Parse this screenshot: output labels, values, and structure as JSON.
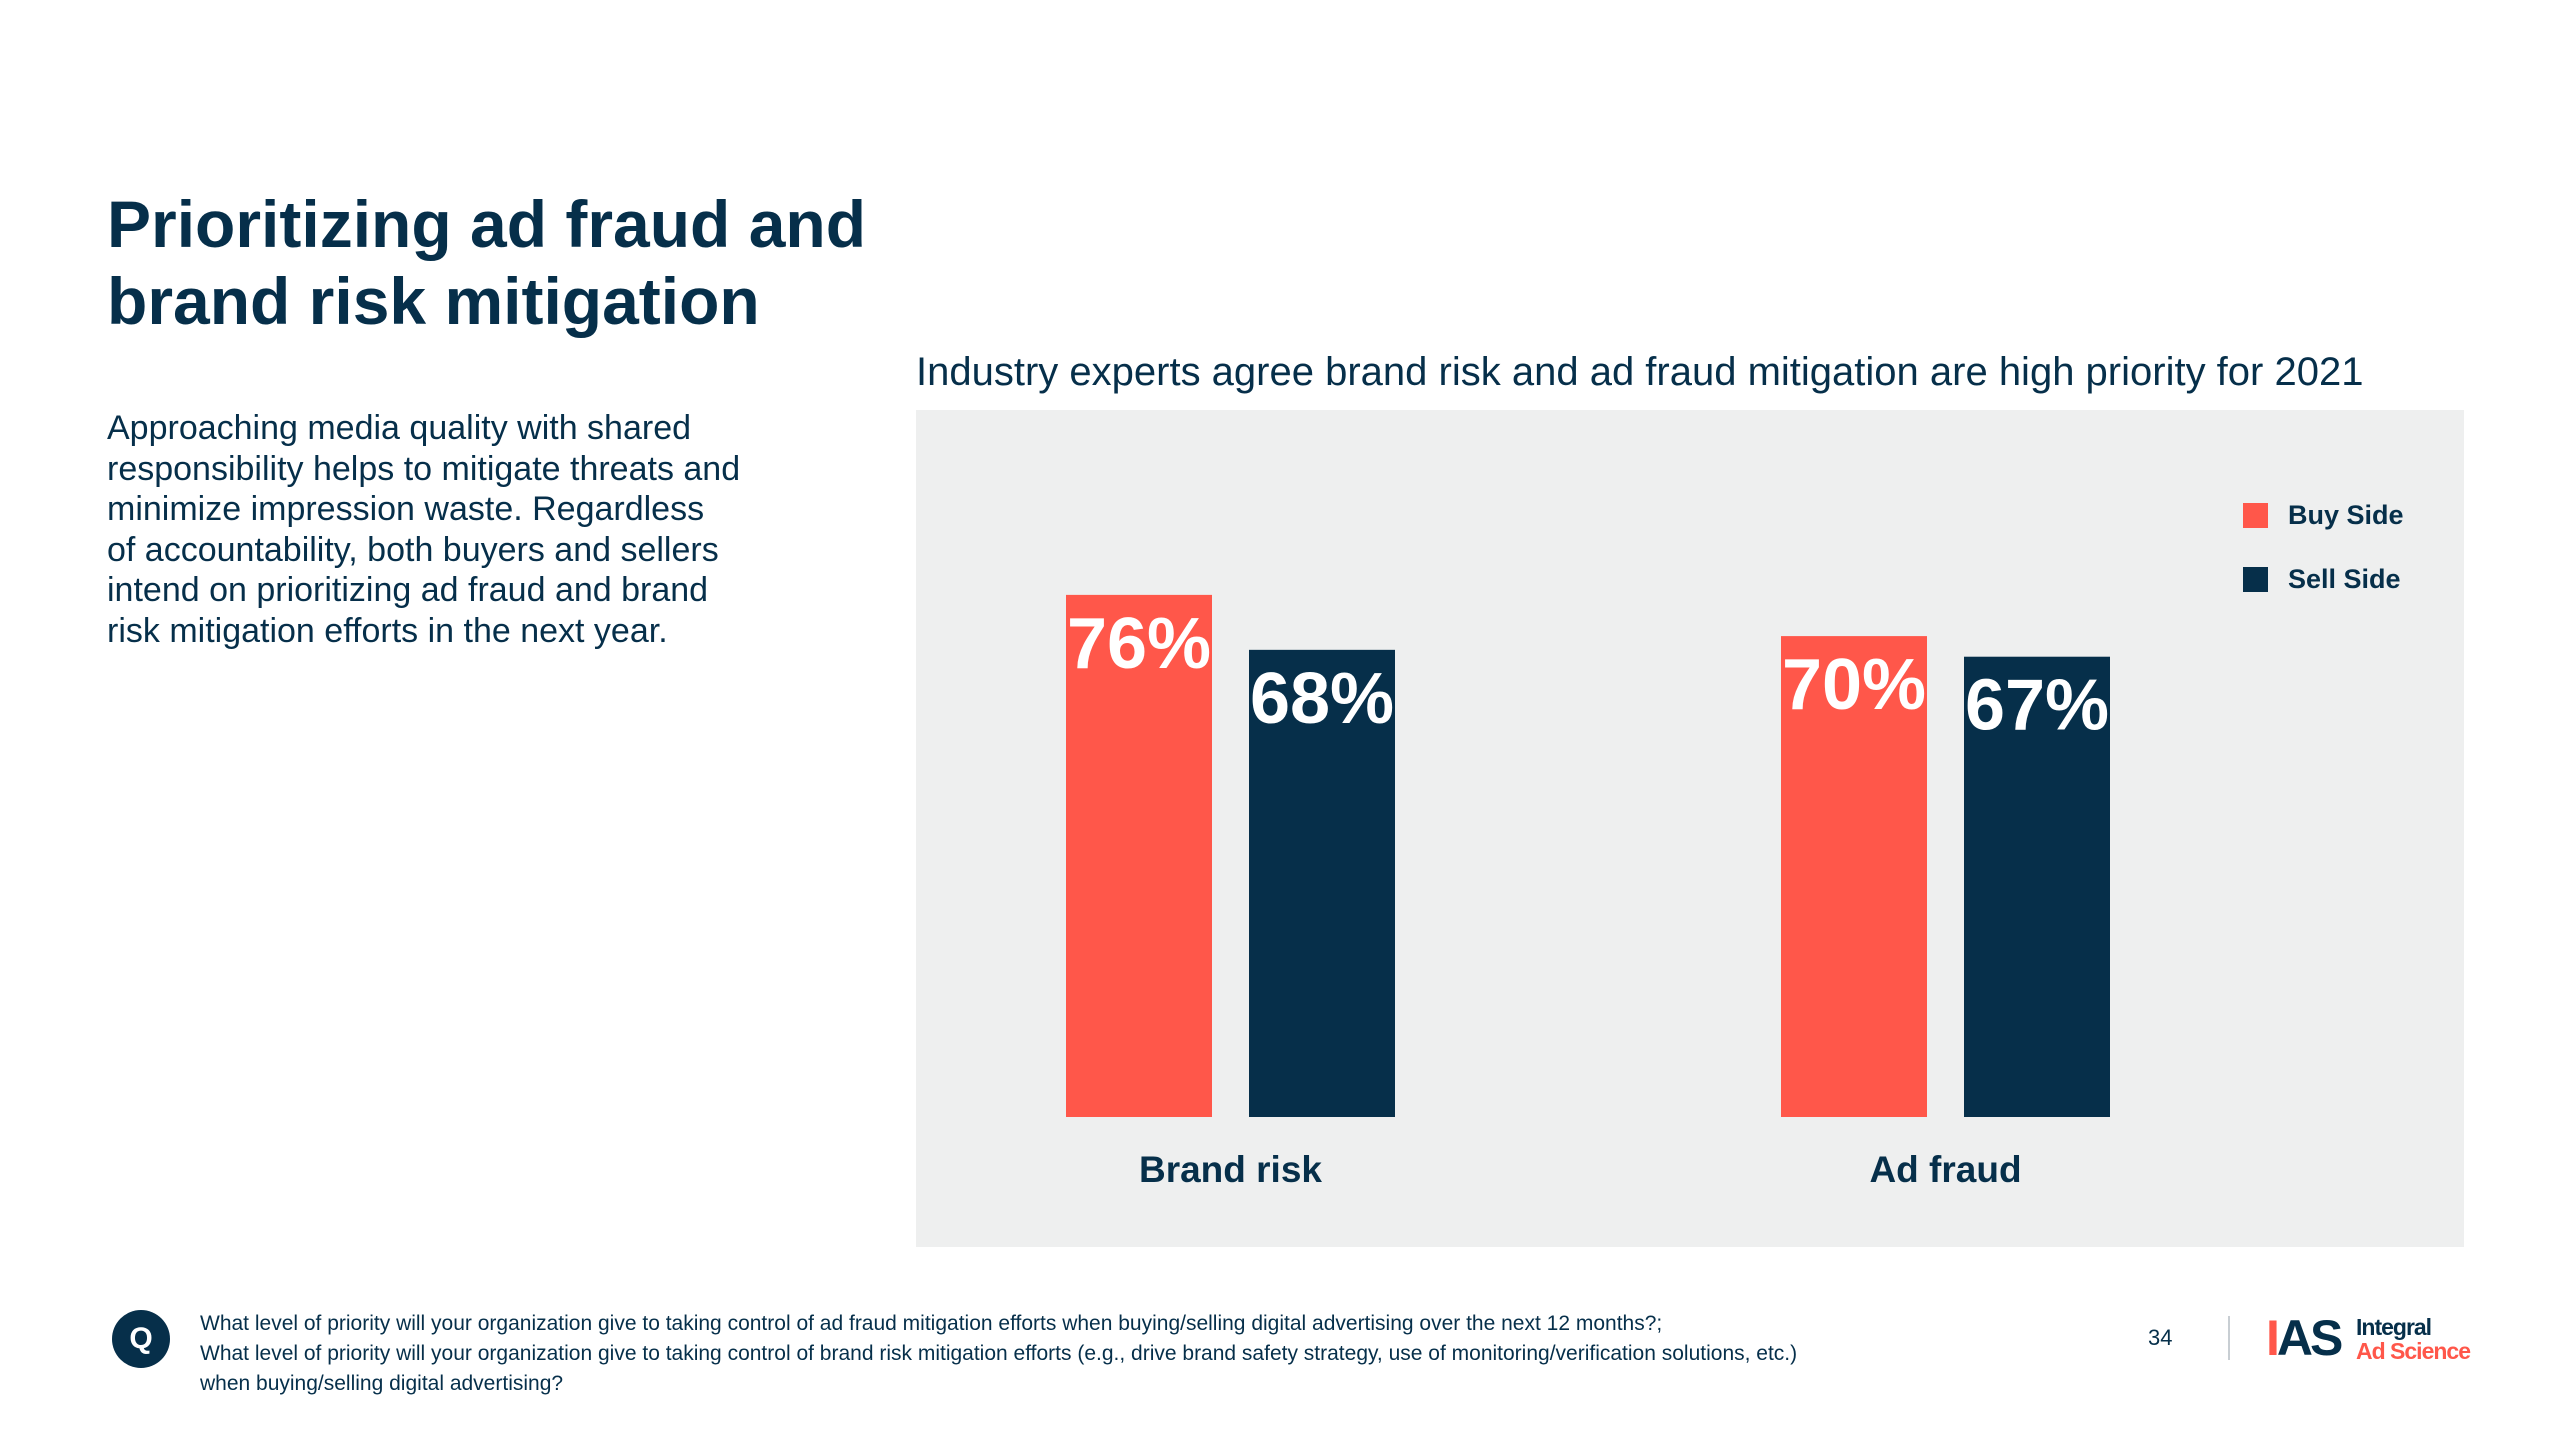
{
  "page": {
    "title_lines": [
      "Prioritizing ad fraud and",
      "brand risk mitigation"
    ],
    "intro_lines": [
      "Approaching media quality with shared",
      "responsibility helps to mitigate threats and",
      "minimize impression waste. Regardless",
      "of accountability, both buyers and sellers",
      "intend on prioritizing ad fraud and brand",
      "risk mitigation efforts in the next year."
    ]
  },
  "chart_data": {
    "type": "bar",
    "title": "Industry experts agree brand risk and ad fraud mitigation are high priority for 2021",
    "categories": [
      "Brand risk",
      "Ad fraud"
    ],
    "series": [
      {
        "name": "Buy Side",
        "values": [
          76,
          70
        ],
        "labels": [
          "76%",
          "70%"
        ],
        "color": "#ff574a"
      },
      {
        "name": "Sell Side",
        "values": [
          68,
          67
        ],
        "labels": [
          "68%",
          "67%"
        ],
        "color": "#062f4a"
      }
    ],
    "ylim": [
      0,
      100
    ],
    "xlabel": "",
    "ylabel": "",
    "grid": false,
    "legend": "top-right"
  },
  "footer": {
    "q_badge": "Q",
    "question_lines": [
      "What level of priority will your organization give to taking control of ad fraud mitigation efforts when buying/selling digital advertising over the next 12 months?;",
      "What level of priority will your organization give to taking control of brand risk mitigation efforts (e.g., drive brand safety strategy, use of monitoring/verification solutions, etc.)",
      "when buying/selling digital advertising?"
    ],
    "page_number": "34",
    "logo_mark_i": "I",
    "logo_mark_as": "AS",
    "logo_word_1": "Integral",
    "logo_word_2": "Ad Science"
  },
  "colors": {
    "navy": "#062f4a",
    "coral": "#ff574a",
    "panel": "#eeefef"
  }
}
